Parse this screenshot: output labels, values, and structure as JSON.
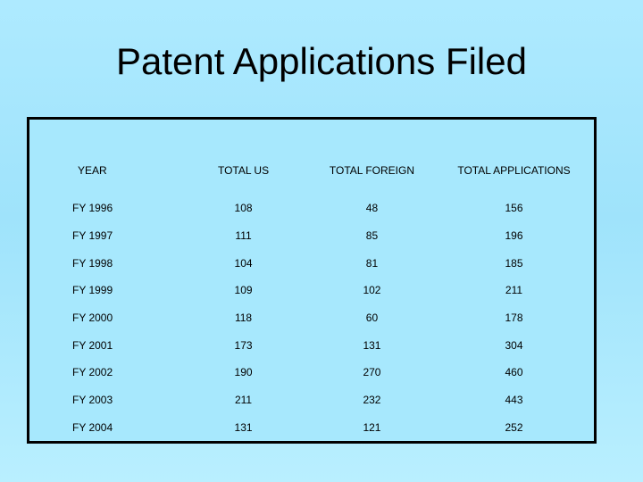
{
  "title": "Patent Applications Filed",
  "table": {
    "headers": [
      "YEAR",
      "TOTAL US",
      "TOTAL FOREIGN",
      "TOTAL APPLICATIONS"
    ],
    "rows": [
      [
        "FY 1996",
        "108",
        "48",
        "156"
      ],
      [
        "FY 1997",
        "111",
        "85",
        "196"
      ],
      [
        "FY 1998",
        "104",
        "81",
        "185"
      ],
      [
        "FY 1999",
        "109",
        "102",
        "211"
      ],
      [
        "FY 2000",
        "118",
        "60",
        "178"
      ],
      [
        "FY 2001",
        "173",
        "131",
        "304"
      ],
      [
        "FY 2002",
        "190",
        "270",
        "460"
      ],
      [
        "FY 2003",
        "211",
        "232",
        "443"
      ],
      [
        "FY 2004",
        "131",
        "121",
        "252"
      ]
    ]
  }
}
